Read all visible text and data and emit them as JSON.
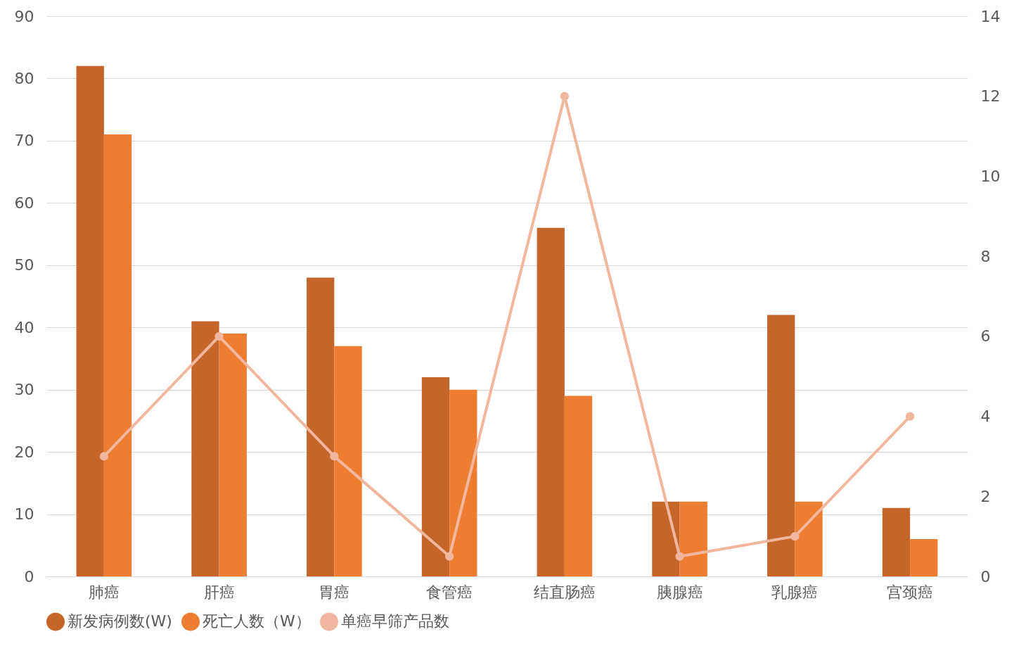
{
  "chart_data": {
    "type": "bar",
    "categories": [
      "肺癌",
      "肝癌",
      "胃癌",
      "食管癌",
      "结直肠癌",
      "胰腺癌",
      "乳腺癌",
      "宫颈癌"
    ],
    "series": [
      {
        "name": "新发病例数(W)",
        "color": "#c4652a",
        "values": [
          82,
          41,
          48,
          32,
          56,
          12,
          42,
          11
        ]
      },
      {
        "name": "死亡人数（W）",
        "color": "#ed7d31",
        "values": [
          71,
          39,
          37,
          30,
          29,
          12,
          12,
          6
        ]
      },
      {
        "name": "单癌早筛产品数",
        "type": "line",
        "axis": "y2",
        "color": "#f1b79e",
        "marker": "circle",
        "values": [
          3,
          6,
          3,
          0.5,
          12,
          0.5,
          1,
          4
        ]
      }
    ],
    "ylim": [
      0,
      90
    ],
    "yticks": [
      0,
      10,
      20,
      30,
      40,
      50,
      60,
      70,
      80,
      90
    ],
    "y2lim": [
      0,
      14
    ],
    "y2ticks": [
      0,
      2,
      4,
      6,
      8,
      10,
      12,
      14
    ],
    "grid": "y",
    "legend": "bottom"
  }
}
